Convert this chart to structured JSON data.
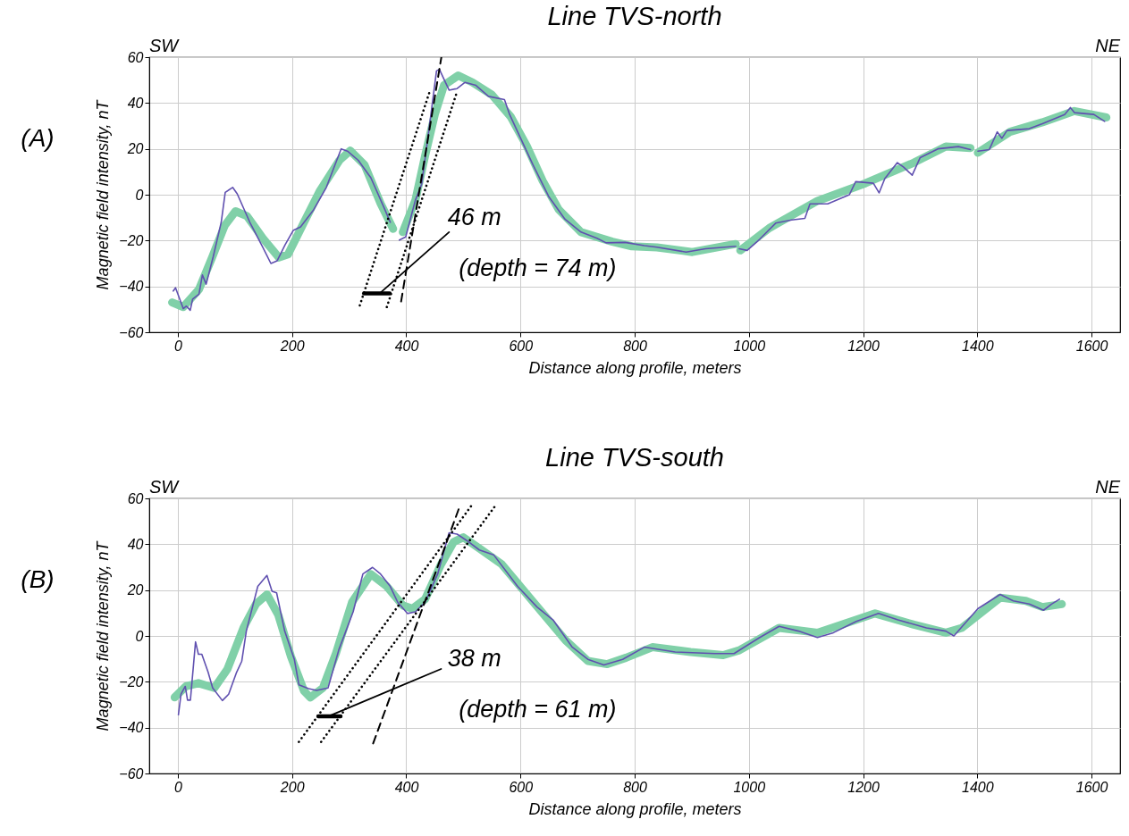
{
  "chart_data": [
    {
      "type": "line",
      "title": "Line TVS-north",
      "xlabel": "Distance along profile, meters",
      "ylabel": "Magnetic field intensity, nT",
      "xlim": [
        -50,
        1650
      ],
      "xticks": [
        0,
        200,
        400,
        600,
        800,
        1000,
        1200,
        1400,
        1600
      ],
      "ylim": [
        -60,
        60
      ],
      "yticks": [
        -60,
        -40,
        -20,
        0,
        20,
        40,
        60
      ],
      "grid": true,
      "line_style": "solid",
      "marker": "none",
      "annotations": [
        "(A)",
        "SW",
        "NE",
        "46 m",
        "(depth = 74 m)"
      ],
      "series": [
        {
          "color": "#80d0a8",
          "x": [
            -10,
            9.5,
            37,
            60,
            82,
            101,
            121,
            149,
            177,
            193,
            221,
            249,
            283,
            302,
            327,
            355,
            377,
            385,
            394,
            416,
            433,
            450,
            466,
            491,
            516,
            550,
            583,
            611,
            639,
            667,
            706,
            761,
            795,
            839,
            901,
            977,
            981,
            985,
            1036,
            1120,
            1204,
            1289,
            1345,
            1388,
            1395,
            1401,
            1457,
            1514,
            1570,
            1626
          ],
          "values": [
            -47,
            -49,
            -41.3,
            -27.4,
            -13.5,
            -7.2,
            -9.3,
            -19,
            -27.4,
            -26,
            -12,
            1.8,
            15,
            19.2,
            13,
            -3.8,
            -14.9,
            null,
            -16.3,
            -2.4,
            17,
            35,
            47.7,
            52,
            49,
            43.6,
            34,
            21.3,
            6,
            -6.5,
            -16.3,
            -20.5,
            -22.5,
            -23,
            -25,
            -21.5,
            null,
            -24.3,
            -14.5,
            -2.7,
            5,
            14,
            21,
            20.4,
            null,
            18.3,
            27.4,
            31.6,
            36.5,
            33.7
          ]
        },
        {
          "color": "#6050b0",
          "x": [
            -8,
            -4,
            9.5,
            15,
            21.7,
            26,
            37,
            43,
            49.6,
            62,
            76,
            83,
            96,
            104,
            126,
            149,
            163,
            174,
            188,
            202,
            215,
            238,
            260,
            286,
            297,
            316,
            338,
            360,
            372,
            380,
            388,
            399,
            416,
            427,
            439,
            453,
            458,
            475,
            489,
            503,
            522,
            544,
            572,
            581,
            594,
            622,
            650,
            678,
            706,
            734,
            750,
            783,
            817,
            839,
            890,
            924,
            977,
            980,
            983,
            997,
            1019,
            1047,
            1075,
            1098,
            1107,
            1138,
            1176,
            1187,
            1218,
            1228,
            1238,
            1260,
            1271,
            1286,
            1300,
            1331,
            1367,
            1388,
            1395,
            1401,
            1421,
            1435,
            1443,
            1452,
            1491,
            1514,
            1553,
            1563,
            1570,
            1604,
            1623
          ],
          "values": [
            -42,
            -40.6,
            -49.7,
            -48.6,
            -50.4,
            -45.5,
            -43.4,
            -35,
            -39,
            -27,
            -12,
            1,
            3.2,
            0.4,
            -12,
            -23,
            -30,
            -28.8,
            -21.8,
            -15.6,
            -14,
            -6.5,
            3.2,
            20,
            19,
            15,
            7.4,
            -5,
            -12,
            null,
            -19.8,
            -18.4,
            -2.4,
            4.6,
            26.9,
            54,
            54.7,
            45.6,
            46.3,
            49,
            47.7,
            42.9,
            41.5,
            35,
            28,
            13,
            -1,
            -10.7,
            -16.3,
            -19,
            -21,
            -20.8,
            -22.2,
            -22.9,
            -25,
            -23.6,
            -22.5,
            null,
            -23.6,
            -24.3,
            -19.4,
            -12.4,
            -11,
            -10.3,
            -4,
            -4,
            0,
            5.7,
            5,
            0.8,
            7,
            14,
            12,
            8.5,
            16.2,
            20,
            21,
            19.7,
            null,
            19,
            19.7,
            27.4,
            24.6,
            28,
            28.8,
            31,
            35,
            38,
            35.8,
            35,
            32
          ]
        },
        {
          "color": "#000000",
          "line_style": "dotted",
          "x": [
            318.7,
            441
          ],
          "values": [
            -48.3,
            45
          ]
        },
        {
          "color": "#000000",
          "line_style": "dotted",
          "x": [
            366,
            489
          ],
          "values": [
            -49,
            45
          ]
        },
        {
          "color": "#000000",
          "line_style": "dashed",
          "x": [
            391,
            461.5
          ],
          "values": [
            -46.6,
            60
          ]
        },
        {
          "color": "#000000",
          "x": [
            355,
            475
          ],
          "values": [
            -42.7,
            -16.3
          ]
        },
        {
          "color": "#000000",
          "x": [
            326,
            371
          ],
          "values": [
            -43.1,
            -43.1
          ]
        }
      ]
    },
    {
      "type": "line",
      "title": "Line TVS-south",
      "xlabel": "Distance along profile, meters",
      "ylabel": "Magnetic field intensity, nT",
      "xlim": [
        -50,
        1650
      ],
      "xticks": [
        0,
        200,
        400,
        600,
        800,
        1000,
        1200,
        1400,
        1600
      ],
      "ylim": [
        -60,
        60
      ],
      "yticks": [
        -60,
        -40,
        -20,
        0,
        20,
        40,
        60
      ],
      "grid": true,
      "line_style": "solid",
      "marker": "none",
      "annotations": [
        "(B)",
        "SW",
        "NE",
        "38 m",
        "(depth = 61 m)"
      ],
      "series": [
        {
          "color": "#80d0a8",
          "x": [
            -5.6,
            14,
            36,
            64,
            87,
            115,
            137,
            156,
            176,
            198,
            221,
            232,
            254,
            277,
            305,
            338,
            366,
            394,
            411,
            433,
            461,
            483,
            500,
            528,
            567,
            623,
            679,
            718,
            752,
            785,
            831,
            898,
            955,
            983,
            1053,
            1120,
            1221,
            1289,
            1345,
            1373,
            1440,
            1485,
            1514,
            1548
          ],
          "values": [
            -26.8,
            -22,
            -20.6,
            -22.7,
            -14.4,
            3.6,
            14,
            18.1,
            9.1,
            -8.9,
            -24,
            -26.8,
            -22.7,
            -7.5,
            14.7,
            27,
            21.6,
            13.3,
            11.9,
            16,
            31.3,
            41,
            43,
            38.2,
            31.3,
            14.7,
            -1.9,
            -10.9,
            -12.3,
            -9.5,
            -4.9,
            -7,
            -8.4,
            -6.3,
            3.5,
            1.4,
            9.8,
            4.9,
            1.4,
            3.5,
            16.7,
            15.3,
            12.6,
            13.9
          ]
        },
        {
          "color": "#6050b0",
          "x": [
            1,
            5.6,
            13,
            17,
            22,
            31,
            36,
            42,
            53,
            61,
            78,
            89,
            103,
            112,
            120,
            140,
            156,
            165,
            173,
            187,
            204,
            212,
            229,
            243,
            263,
            282,
            307,
            324,
            341,
            355,
            372,
            385,
            402,
            416,
            433,
            455,
            475,
            489,
            506,
            528,
            553,
            595,
            629,
            657,
            690,
            718,
            746,
            779,
            817,
            871,
            940,
            974,
            1019,
            1053,
            1087,
            1120,
            1148,
            1188,
            1227,
            1261,
            1311,
            1345,
            1359,
            1401,
            1440,
            1463,
            1491,
            1516,
            1530,
            1544
          ],
          "values": [
            -34.4,
            -25.4,
            -22,
            -28,
            -28,
            -2.6,
            -8,
            -8,
            -15.8,
            -22.7,
            -28.2,
            -25.4,
            -15.8,
            -11,
            2.2,
            21.6,
            26.4,
            19.5,
            18.8,
            2.2,
            -10.2,
            -21.3,
            -23,
            -23.8,
            -22.7,
            -6,
            10.5,
            27,
            29.9,
            27,
            21.6,
            14.7,
            9.8,
            10.5,
            14.7,
            27,
            45,
            44.4,
            41.6,
            37.5,
            35.4,
            21.6,
            12.6,
            7,
            -4.7,
            -10.2,
            -12.7,
            -10.2,
            -4.9,
            -7,
            -7.7,
            -7.7,
            -0.7,
            4.2,
            2.1,
            -0.7,
            1.4,
            6.3,
            9.8,
            7,
            3.5,
            2.1,
            0,
            11.9,
            18.1,
            15.3,
            13.9,
            11.2,
            13.9,
            16
          ]
        },
        {
          "color": "#000000",
          "line_style": "dotted",
          "x": [
            212,
            514
          ],
          "values": [
            -46.2,
            56.8
          ]
        },
        {
          "color": "#000000",
          "line_style": "dotted",
          "x": [
            251,
            556
          ],
          "values": [
            -46.2,
            56.8
          ]
        },
        {
          "color": "#000000",
          "line_style": "dashed",
          "x": [
            342,
            494
          ],
          "values": [
            -46.9,
            56.8
          ]
        },
        {
          "color": "#000000",
          "x": [
            265,
            461
          ],
          "values": [
            -34.9,
            -14.4
          ]
        },
        {
          "color": "#000000",
          "x": [
            246,
            285
          ],
          "values": [
            -35.1,
            -35.1
          ]
        }
      ]
    }
  ]
}
